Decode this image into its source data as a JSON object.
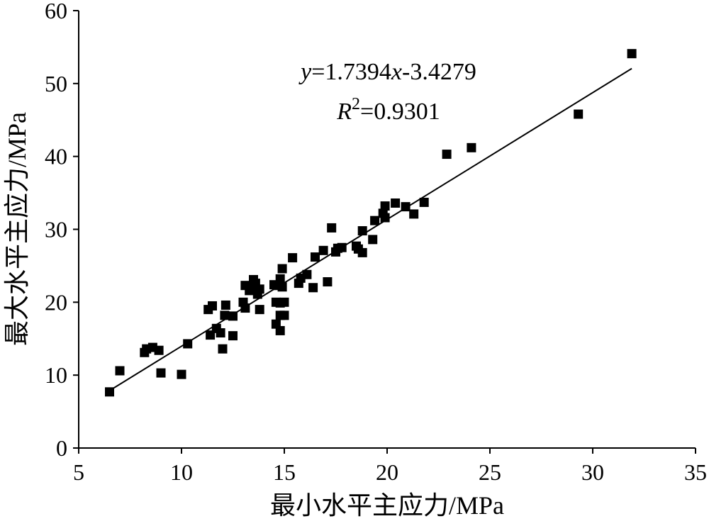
{
  "chart_data": {
    "type": "scatter",
    "xlabel": "最小水平主应力/MPa",
    "ylabel": "最大水平主应力/MPa",
    "xlim": [
      5,
      35
    ],
    "ylim": [
      0,
      60
    ],
    "x_ticks": [
      "5",
      "10",
      "15",
      "20",
      "25",
      "30",
      "35"
    ],
    "y_ticks": [
      "0",
      "10",
      "20",
      "30",
      "40",
      "50",
      "60"
    ],
    "grid": false,
    "legend": "none",
    "marker": "square",
    "marker_color": "#000000",
    "equation": {
      "y_var": "y",
      "eq_rest": "=1.7394",
      "x_var": "x",
      "eq_tail": "-3.4279",
      "r_var": "R",
      "r_exp": "2",
      "r_rest": "=0.9301"
    },
    "trendline": {
      "slope": 1.7394,
      "intercept": -3.4279,
      "x_range": [
        6.5,
        31.9
      ]
    },
    "points": [
      [
        6.5,
        7.7
      ],
      [
        7.0,
        10.6
      ],
      [
        8.2,
        13.1
      ],
      [
        8.3,
        13.6
      ],
      [
        8.6,
        13.8
      ],
      [
        8.9,
        13.4
      ],
      [
        9.0,
        10.3
      ],
      [
        10.0,
        10.1
      ],
      [
        10.3,
        14.3
      ],
      [
        11.3,
        19.0
      ],
      [
        11.4,
        15.5
      ],
      [
        11.5,
        19.5
      ],
      [
        11.7,
        16.4
      ],
      [
        11.9,
        15.8
      ],
      [
        12.0,
        13.6
      ],
      [
        12.1,
        18.2
      ],
      [
        12.15,
        19.6
      ],
      [
        12.5,
        15.4
      ],
      [
        12.5,
        18.1
      ],
      [
        13.0,
        20.0
      ],
      [
        13.1,
        22.3
      ],
      [
        13.1,
        19.2
      ],
      [
        13.3,
        21.6
      ],
      [
        13.4,
        22.2
      ],
      [
        13.5,
        23.1
      ],
      [
        13.6,
        22.6
      ],
      [
        13.7,
        21.1
      ],
      [
        13.8,
        21.8
      ],
      [
        13.8,
        19.0
      ],
      [
        14.5,
        22.4
      ],
      [
        14.6,
        20.0
      ],
      [
        14.6,
        17.0
      ],
      [
        14.7,
        22.3
      ],
      [
        14.8,
        23.2
      ],
      [
        14.8,
        19.9
      ],
      [
        14.8,
        18.2
      ],
      [
        14.8,
        16.1
      ],
      [
        14.9,
        24.6
      ],
      [
        14.9,
        22.1
      ],
      [
        15.0,
        20.0
      ],
      [
        15.0,
        18.2
      ],
      [
        15.4,
        26.1
      ],
      [
        15.7,
        22.6
      ],
      [
        15.8,
        23.3
      ],
      [
        16.1,
        23.8
      ],
      [
        16.4,
        22.0
      ],
      [
        16.5,
        26.2
      ],
      [
        16.9,
        27.1
      ],
      [
        17.1,
        22.8
      ],
      [
        17.3,
        30.2
      ],
      [
        17.5,
        26.9
      ],
      [
        17.6,
        27.4
      ],
      [
        17.8,
        27.5
      ],
      [
        18.5,
        27.7
      ],
      [
        18.6,
        27.3
      ],
      [
        18.8,
        29.8
      ],
      [
        18.8,
        26.8
      ],
      [
        19.3,
        28.6
      ],
      [
        19.4,
        31.2
      ],
      [
        19.8,
        32.2
      ],
      [
        19.9,
        31.6
      ],
      [
        19.9,
        33.2
      ],
      [
        20.4,
        33.6
      ],
      [
        20.9,
        33.1
      ],
      [
        21.3,
        32.1
      ],
      [
        21.8,
        33.7
      ],
      [
        22.9,
        40.3
      ],
      [
        24.1,
        41.2
      ],
      [
        29.3,
        45.8
      ],
      [
        31.9,
        54.1
      ]
    ]
  }
}
